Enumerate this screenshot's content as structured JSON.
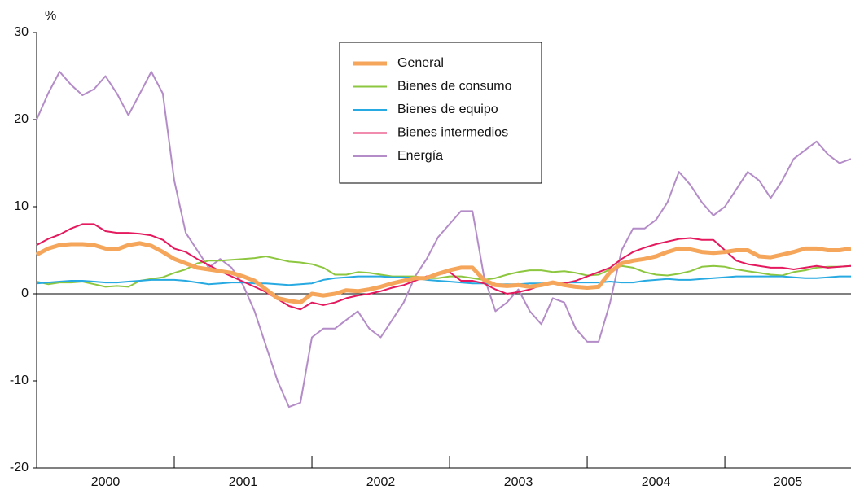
{
  "chart_data": {
    "type": "line",
    "ylabel": "%",
    "x": [
      "2000",
      "2000",
      "2000",
      "2000",
      "2000",
      "2000",
      "2000",
      "2000",
      "2000",
      "2000",
      "2000",
      "2000",
      "2001",
      "2001",
      "2001",
      "2001",
      "2001",
      "2001",
      "2001",
      "2001",
      "2001",
      "2001",
      "2001",
      "2001",
      "2002",
      "2002",
      "2002",
      "2002",
      "2002",
      "2002",
      "2002",
      "2002",
      "2002",
      "2002",
      "2002",
      "2002",
      "2003",
      "2003",
      "2003",
      "2003",
      "2003",
      "2003",
      "2003",
      "2003",
      "2003",
      "2003",
      "2003",
      "2003",
      "2004",
      "2004",
      "2004",
      "2004",
      "2004",
      "2004",
      "2004",
      "2004",
      "2004",
      "2004",
      "2004",
      "2004",
      "2005",
      "2005",
      "2005",
      "2005",
      "2005",
      "2005",
      "2005",
      "2005",
      "2005",
      "2005",
      "2005",
      "2005"
    ],
    "ylim": [
      -20,
      30
    ],
    "yticks": [
      -20,
      -10,
      0,
      10,
      20,
      30
    ],
    "series": [
      {
        "name": "General",
        "color": "#f5a65b",
        "values": [
          4.5,
          5.2,
          5.6,
          5.7,
          5.7,
          5.6,
          5.2,
          5.1,
          5.6,
          5.8,
          5.5,
          4.8,
          4,
          3.5,
          3,
          2.8,
          2.6,
          2.4,
          2,
          1.5,
          0.5,
          -0.5,
          -0.8,
          -1,
          0,
          -0.2,
          0,
          0.4,
          0.3,
          0.5,
          0.8,
          1.2,
          1.5,
          1.8,
          1.8,
          2.3,
          2.7,
          3,
          3,
          1.6,
          1,
          0.9,
          1,
          0.8,
          1,
          1.3,
          1,
          0.8,
          0.7,
          0.8,
          2.5,
          3.5,
          3.8,
          4,
          4.3,
          4.8,
          5.2,
          5.1,
          4.8,
          4.7,
          4.8,
          5,
          5,
          4.3,
          4.2,
          4.5,
          4.8,
          5.2,
          5.2,
          5,
          5,
          5.2
        ]
      },
      {
        "name": "Bienes de consumo",
        "color": "#8dc63f",
        "values": [
          1.4,
          1.1,
          1.3,
          1.3,
          1.4,
          1.1,
          0.8,
          0.9,
          0.8,
          1.5,
          1.7,
          1.9,
          2.4,
          2.8,
          3.5,
          3.8,
          3.8,
          3.9,
          4,
          4.1,
          4.3,
          4,
          3.7,
          3.6,
          3.4,
          3,
          2.2,
          2.2,
          2.5,
          2.4,
          2.2,
          2,
          2,
          2,
          1.8,
          1.8,
          2,
          2,
          1.8,
          1.6,
          1.8,
          2.2,
          2.5,
          2.7,
          2.7,
          2.5,
          2.6,
          2.4,
          2.1,
          2.2,
          2.8,
          3.2,
          3,
          2.5,
          2.2,
          2.1,
          2.3,
          2.6,
          3.1,
          3.2,
          3.1,
          2.8,
          2.6,
          2.4,
          2.2,
          2.1,
          2.5,
          2.7,
          3,
          3.1,
          3.1,
          3.2
        ]
      },
      {
        "name": "Bienes de equipo",
        "color": "#27a9e1",
        "values": [
          1.2,
          1.3,
          1.4,
          1.5,
          1.5,
          1.4,
          1.3,
          1.3,
          1.4,
          1.5,
          1.6,
          1.6,
          1.6,
          1.5,
          1.3,
          1.1,
          1.2,
          1.3,
          1.3,
          1.2,
          1.2,
          1.1,
          1,
          1.1,
          1.2,
          1.6,
          1.8,
          1.9,
          2,
          2,
          2,
          1.9,
          1.9,
          1.8,
          1.6,
          1.5,
          1.4,
          1.3,
          1.2,
          1.2,
          1.1,
          1.1,
          1.1,
          1.2,
          1.2,
          1.3,
          1.3,
          1.3,
          1.3,
          1.3,
          1.4,
          1.3,
          1.3,
          1.5,
          1.6,
          1.7,
          1.6,
          1.6,
          1.7,
          1.8,
          1.9,
          2,
          2,
          2,
          2,
          2,
          1.9,
          1.8,
          1.8,
          1.9,
          2,
          2
        ]
      },
      {
        "name": "Bienes intermedios",
        "color": "#e5195e",
        "values": [
          5.6,
          6.3,
          6.8,
          7.5,
          8,
          8,
          7.2,
          7,
          7,
          6.9,
          6.7,
          6.2,
          5.2,
          4.8,
          4,
          3.3,
          2.6,
          2,
          1.4,
          0.8,
          0.2,
          -0.6,
          -1.4,
          -1.8,
          -1,
          -1.3,
          -1,
          -0.5,
          -0.2,
          0,
          0.3,
          0.7,
          1,
          1.5,
          2,
          2.2,
          2.5,
          1.5,
          1.5,
          1.2,
          0.5,
          0,
          0.2,
          0.5,
          1,
          1.3,
          1.2,
          1.5,
          2,
          2.5,
          3,
          4,
          4.8,
          5.3,
          5.7,
          6,
          6.3,
          6.4,
          6.2,
          6.2,
          5,
          3.8,
          3.4,
          3.2,
          3,
          3,
          2.8,
          3,
          3.2,
          3,
          3.1,
          3.2
        ]
      },
      {
        "name": "Energía",
        "color": "#b48cc8",
        "values": [
          20,
          23,
          25.5,
          24,
          22.8,
          23.5,
          25,
          23,
          20.5,
          23,
          25.5,
          23,
          13,
          7,
          5,
          3,
          4,
          3,
          1,
          -2,
          -6,
          -10,
          -13,
          -12.5,
          -5,
          -4,
          -4,
          -3,
          -2,
          -4,
          -5,
          -3,
          -1,
          2,
          4,
          6.5,
          8,
          9.5,
          9.5,
          2,
          -2,
          -1,
          0.5,
          -2,
          -3.5,
          -0.5,
          -1,
          -4,
          -5.5,
          -5.5,
          -1,
          5,
          7.5,
          7.5,
          8.5,
          10.5,
          14,
          12.5,
          10.5,
          9,
          10,
          12,
          14,
          13,
          11,
          13,
          15.5,
          16.5,
          17.5,
          16,
          15,
          15.5
        ]
      }
    ]
  }
}
